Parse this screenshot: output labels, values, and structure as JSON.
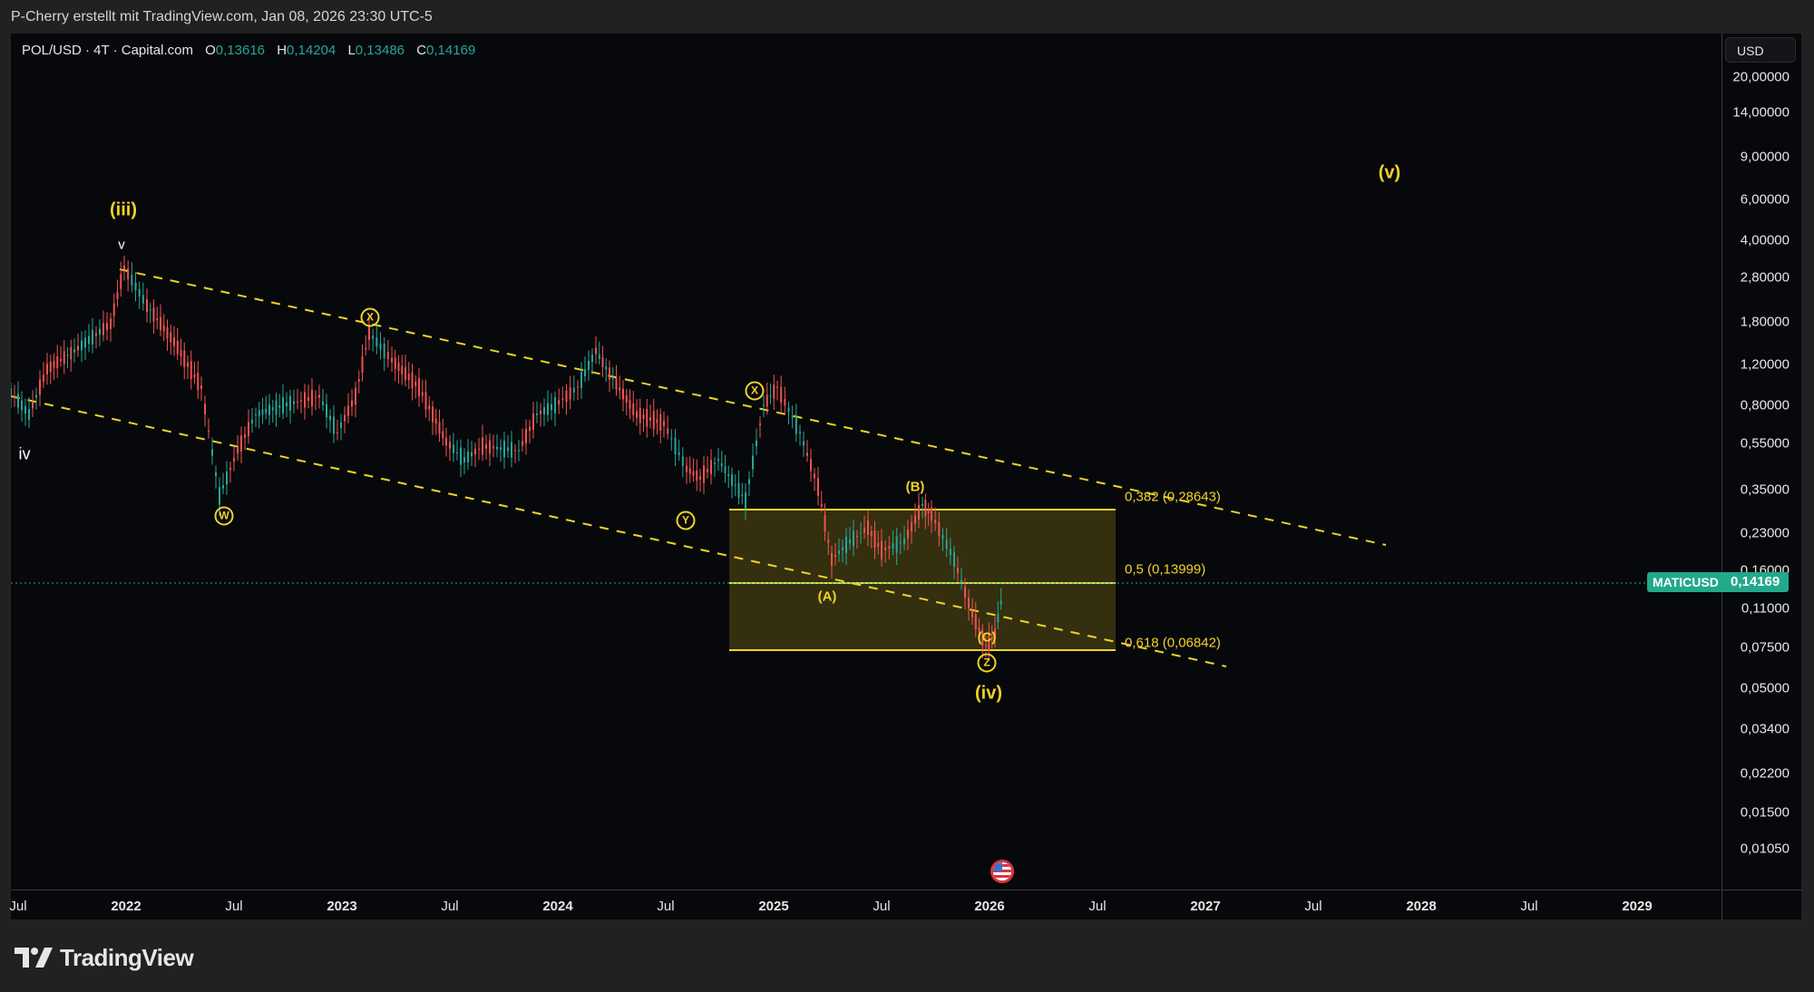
{
  "topbar": {
    "credit": "P-Cherry erstellt mit TradingView.com, Jan 08, 2026 23:30 UTC-5"
  },
  "legend": {
    "symbol": "POL/USD · 4T · Capital.com",
    "open_label": "O",
    "open": "0,13616",
    "high_label": "H",
    "high": "0,14204",
    "low_label": "L",
    "low": "0,13486",
    "close_label": "C",
    "close": "0,14169"
  },
  "price_axis": {
    "currency_button": "USD",
    "ticks": [
      "20,00000",
      "14,00000",
      "9,00000",
      "6,00000",
      "4,00000",
      "2,80000",
      "1,80000",
      "1,20000",
      "0,80000",
      "0,55000",
      "0,35000",
      "0,23000",
      "0,16000",
      "0,11000",
      "0,07500",
      "0,05000",
      "0,03400",
      "0,02200",
      "0,01500",
      "0,01050"
    ],
    "last_price": "0,14169",
    "last_price_symbol": "MATICUSD"
  },
  "time_axis": {
    "ticks": [
      "Jul",
      "2022",
      "Jul",
      "2023",
      "Jul",
      "2024",
      "Jul",
      "2025",
      "Jul",
      "2026",
      "Jul",
      "2027",
      "Jul",
      "2028",
      "Jul",
      "2029"
    ]
  },
  "annotations": {
    "wave_iii": "(iii)",
    "wave_v_small": "v",
    "wave_iv_small": "iv",
    "wave_v_target": "(v)",
    "wave_iv": "(iv)",
    "wave_A": "(A)",
    "wave_B": "(B)",
    "wave_C": "(C)",
    "circle_W": "W",
    "circle_X1": "X",
    "circle_Y": "Y",
    "circle_X2": "X",
    "circle_Z": "Z"
  },
  "fibonacci": {
    "levels": [
      {
        "label": "0,382 (0,28643)",
        "ratio": 0.382,
        "price": 0.28643
      },
      {
        "label": "0,5 (0,13999)",
        "ratio": 0.5,
        "price": 0.13999
      },
      {
        "label": "0,618 (0,06842)",
        "ratio": 0.618,
        "price": 0.06842
      }
    ]
  },
  "colors": {
    "up": "#26a69a",
    "down": "#ef5350",
    "annotation": "#f0d327",
    "last_price_bg": "#22a98c",
    "background": "#07080b"
  },
  "footer": {
    "brand": "TradingView"
  },
  "chart_data": {
    "type": "candlestick",
    "title": "POL/USD · 4T · Capital.com",
    "scale": "log",
    "ylabel": "USD",
    "ylim": [
      0.0105,
      20.0
    ],
    "x_ticks": [
      "Jul 2021",
      "2022",
      "Jul 2022",
      "2023",
      "Jul 2023",
      "2024",
      "Jul 2024",
      "2025",
      "Jul 2025",
      "2026",
      "Jul 2026",
      "2027",
      "Jul 2027",
      "2028",
      "Jul 2028",
      "2029"
    ],
    "y_ticks": [
      20.0,
      14.0,
      9.0,
      6.0,
      4.0,
      2.8,
      1.8,
      1.2,
      0.8,
      0.55,
      0.35,
      0.23,
      0.16,
      0.11,
      0.075,
      0.05,
      0.034,
      0.022,
      0.015,
      0.0105
    ],
    "ohlc_last": {
      "open": 0.13616,
      "high": 0.14204,
      "low": 0.13486,
      "close": 0.14169
    },
    "approx_swing_points": [
      {
        "date": "2021-09",
        "price": 1.0,
        "label": "iv"
      },
      {
        "date": "2021-12",
        "price": 2.9,
        "label": "v / (iii)"
      },
      {
        "date": "2022-06",
        "price": 0.32,
        "label": "W"
      },
      {
        "date": "2023-02",
        "price": 1.55,
        "label": "X"
      },
      {
        "date": "2024-03",
        "price": 1.25,
        "label": ""
      },
      {
        "date": "2024-08",
        "price": 0.32,
        "label": "Y"
      },
      {
        "date": "2024-12",
        "price": 0.72,
        "label": "X"
      },
      {
        "date": "2025-04",
        "price": 0.17,
        "label": "(A)"
      },
      {
        "date": "2025-08",
        "price": 0.29,
        "label": "(B)"
      },
      {
        "date": "2025-12",
        "price": 0.1,
        "label": "(C) / Z / (iv)"
      },
      {
        "date": "2026-01",
        "price": 0.14169,
        "label": "last"
      }
    ],
    "target_label": {
      "text": "(v)",
      "date": "2027-11",
      "price": 9.5
    },
    "fib_zone": {
      "top": 0.28643,
      "mid": 0.13999,
      "bottom": 0.06842,
      "x_start": "2024-10",
      "x_end": "2026-07"
    },
    "channel": {
      "upper": [
        {
          "date": "2021-12",
          "price": 2.9
        },
        {
          "date": "2027-11",
          "price": 0.2
        }
      ],
      "lower": [
        {
          "date": "2021-07",
          "price": 0.9
        },
        {
          "date": "2027-01",
          "price": 0.064
        }
      ]
    }
  }
}
